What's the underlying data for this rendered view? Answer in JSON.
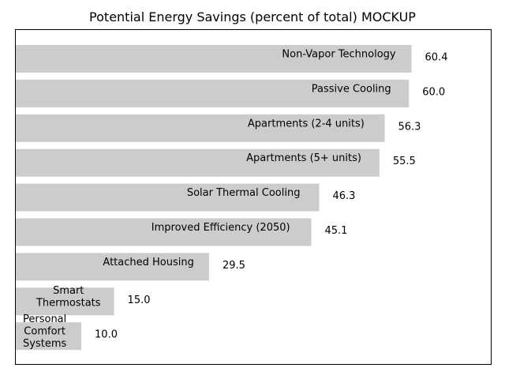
{
  "chart_data": {
    "type": "bar",
    "orientation": "horizontal",
    "title": "Potential Energy Savings (percent of total) MOCKUP",
    "xlabel": "",
    "ylabel": "",
    "xlim": [
      0,
      72.5
    ],
    "grid": false,
    "axes_ticks_visible": false,
    "bar_color": "#cccccc",
    "categories": [
      "Non-Vapor Technology",
      "Passive Cooling",
      "Apartments (2-4 units)",
      "Apartments (5+ units)",
      "Solar Thermal Cooling",
      "Improved Efficiency (2050)",
      "Attached Housing",
      "Smart\nThermostats",
      "Personal\nComfort\nSystems"
    ],
    "values": [
      60.4,
      60.0,
      56.3,
      55.5,
      46.3,
      45.1,
      29.5,
      15.0,
      10.0
    ],
    "value_labels": [
      "60.4",
      "60.0",
      "56.3",
      "55.5",
      "46.3",
      "45.1",
      "29.5",
      "15.0",
      "10.0"
    ]
  }
}
